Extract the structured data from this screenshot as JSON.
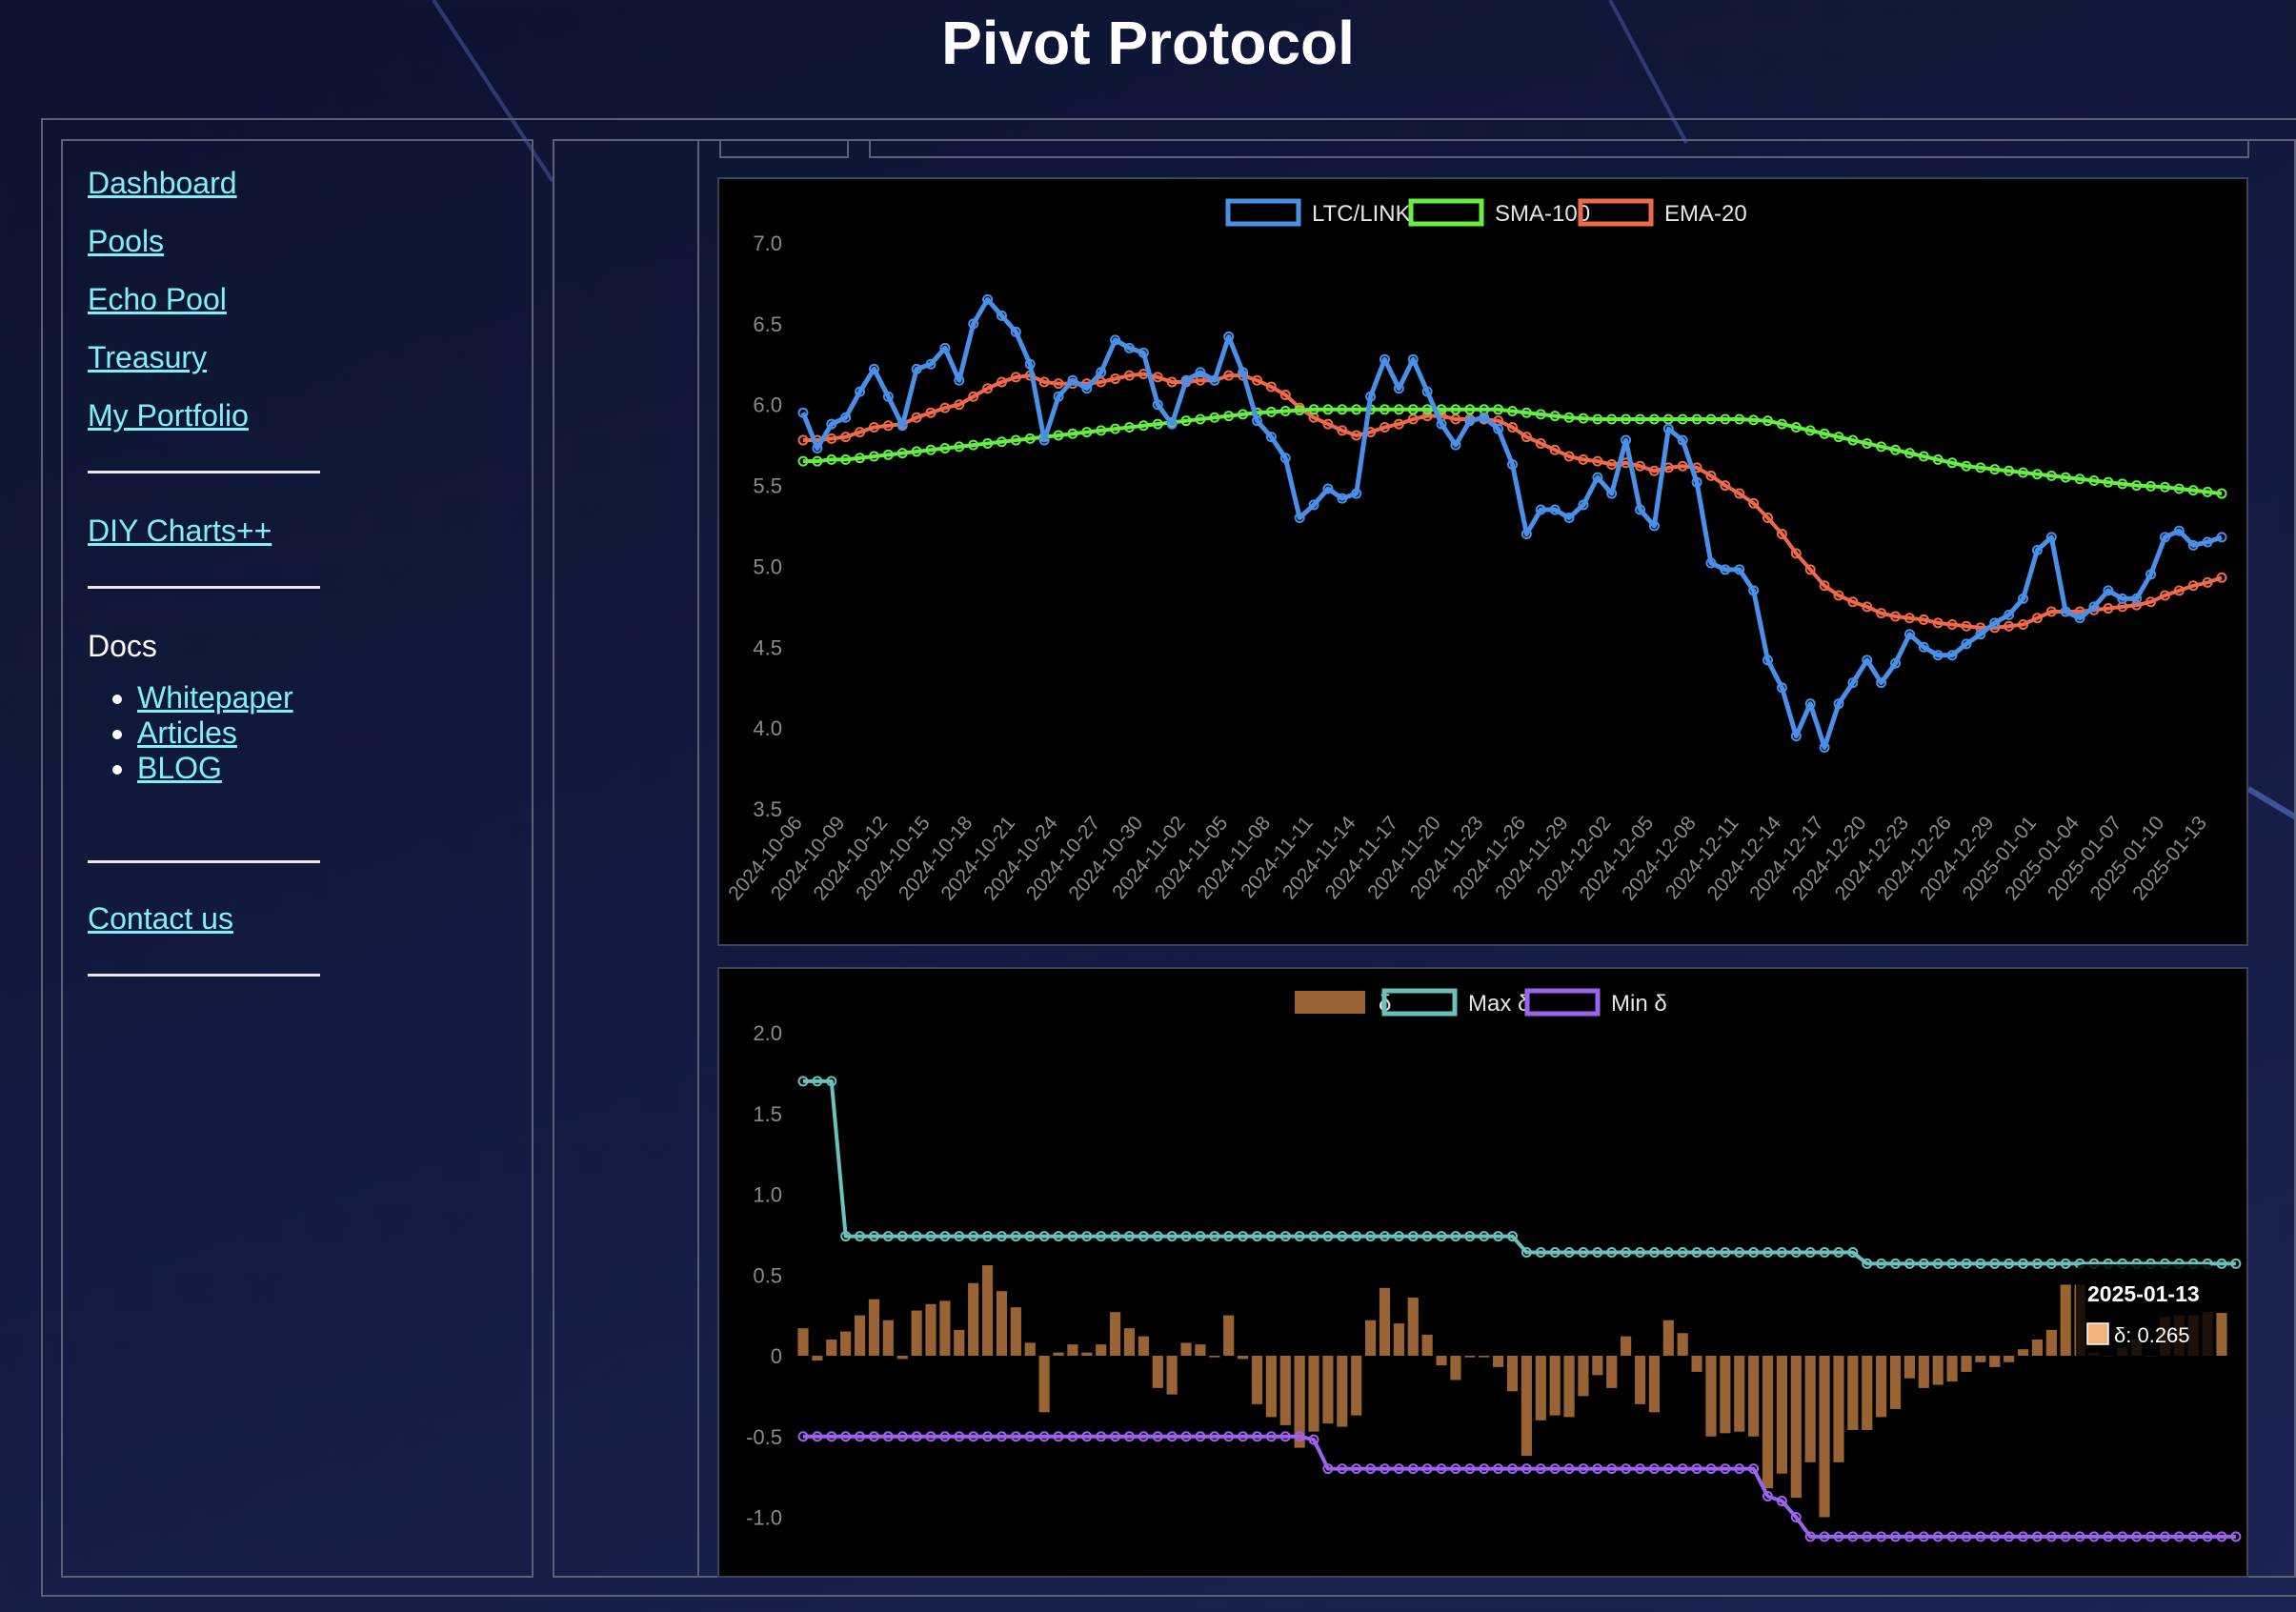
{
  "header": {
    "title": "Pivot Protocol"
  },
  "sidebar": {
    "links": [
      {
        "label": "Dashboard"
      },
      {
        "label": "Pools"
      },
      {
        "label": "Echo Pool"
      },
      {
        "label": "Treasury"
      },
      {
        "label": "My Portfolio"
      },
      {
        "label": "DIY Charts++"
      },
      {
        "label": "Contact us"
      }
    ],
    "docs_label": "Docs",
    "docs_items": [
      {
        "label": "Whitepaper"
      },
      {
        "label": "Articles"
      },
      {
        "label": "BLOG"
      }
    ]
  },
  "colors": {
    "link": "#7ff0f7",
    "price": "#4a8fe8",
    "sma": "#66ee44",
    "ema": "#ef6a4a",
    "delta_bar": "#9a6334",
    "max_delta": "#6cc1bb",
    "min_delta": "#9b63ee"
  },
  "chart_data": [
    {
      "type": "line",
      "series": [
        {
          "name": "LTC/LINK",
          "values": [
            5.95,
            5.73,
            5.88,
            5.92,
            6.08,
            6.22,
            6.05,
            5.87,
            6.22,
            6.25,
            6.35,
            6.15,
            6.5,
            6.65,
            6.55,
            6.45,
            6.25,
            5.78,
            6.05,
            6.15,
            6.1,
            6.2,
            6.4,
            6.35,
            6.32,
            6.0,
            5.88,
            6.15,
            6.2,
            6.15,
            6.42,
            6.2,
            5.9,
            5.8,
            5.67,
            5.3,
            5.38,
            5.48,
            5.42,
            5.45,
            6.05,
            6.28,
            6.1,
            6.28,
            6.08,
            5.88,
            5.75,
            5.9,
            5.92,
            5.85,
            5.63,
            5.2,
            5.35,
            5.35,
            5.3,
            5.38,
            5.55,
            5.45,
            5.78,
            5.35,
            5.25,
            5.85,
            5.78,
            5.52,
            5.02,
            4.98,
            4.98,
            4.85,
            4.42,
            4.25,
            3.95,
            4.15,
            3.88,
            4.15,
            4.28,
            4.42,
            4.28,
            4.4,
            4.58,
            4.5,
            4.45,
            4.45,
            4.52,
            4.58,
            4.65,
            4.7,
            4.8,
            5.1,
            5.18,
            4.72,
            4.68,
            4.75,
            4.85,
            4.8,
            4.8,
            4.95,
            5.18,
            5.22,
            5.13,
            5.15,
            5.18
          ]
        },
        {
          "name": "SMA-100",
          "values": [
            5.65,
            5.65,
            5.66,
            5.66,
            5.67,
            5.68,
            5.69,
            5.7,
            5.71,
            5.72,
            5.73,
            5.74,
            5.75,
            5.76,
            5.77,
            5.78,
            5.79,
            5.8,
            5.81,
            5.82,
            5.83,
            5.84,
            5.85,
            5.86,
            5.87,
            5.88,
            5.89,
            5.9,
            5.91,
            5.92,
            5.93,
            5.94,
            5.95,
            5.955,
            5.96,
            5.965,
            5.97,
            5.97,
            5.97,
            5.97,
            5.97,
            5.97,
            5.97,
            5.97,
            5.97,
            5.97,
            5.97,
            5.97,
            5.97,
            5.97,
            5.96,
            5.95,
            5.94,
            5.93,
            5.92,
            5.915,
            5.91,
            5.91,
            5.91,
            5.91,
            5.91,
            5.91,
            5.91,
            5.91,
            5.91,
            5.91,
            5.91,
            5.905,
            5.9,
            5.88,
            5.86,
            5.84,
            5.82,
            5.8,
            5.78,
            5.76,
            5.74,
            5.72,
            5.7,
            5.68,
            5.66,
            5.64,
            5.62,
            5.61,
            5.6,
            5.59,
            5.58,
            5.57,
            5.56,
            5.55,
            5.54,
            5.53,
            5.52,
            5.51,
            5.5,
            5.495,
            5.49,
            5.48,
            5.47,
            5.46,
            5.45
          ]
        },
        {
          "name": "EMA-20",
          "values": [
            5.78,
            5.78,
            5.79,
            5.8,
            5.83,
            5.86,
            5.87,
            5.88,
            5.92,
            5.95,
            5.98,
            6.0,
            6.05,
            6.1,
            6.14,
            6.17,
            6.18,
            6.14,
            6.13,
            6.13,
            6.13,
            6.14,
            6.16,
            6.18,
            6.19,
            6.17,
            6.14,
            6.14,
            6.15,
            6.15,
            6.18,
            6.18,
            6.15,
            6.11,
            6.06,
            5.98,
            5.92,
            5.88,
            5.84,
            5.81,
            5.83,
            5.86,
            5.88,
            5.91,
            5.93,
            5.93,
            5.91,
            5.91,
            5.91,
            5.9,
            5.86,
            5.8,
            5.76,
            5.72,
            5.68,
            5.66,
            5.65,
            5.63,
            5.64,
            5.62,
            5.59,
            5.61,
            5.62,
            5.61,
            5.56,
            5.5,
            5.45,
            5.39,
            5.3,
            5.2,
            5.08,
            4.98,
            4.88,
            4.82,
            4.78,
            4.75,
            4.71,
            4.69,
            4.68,
            4.67,
            4.65,
            4.64,
            4.63,
            4.62,
            4.62,
            4.63,
            4.64,
            4.68,
            4.72,
            4.72,
            4.72,
            4.73,
            4.74,
            4.75,
            4.76,
            4.78,
            4.82,
            4.85,
            4.88,
            4.9,
            4.93
          ]
        }
      ],
      "x_tick_labels": [
        "2024-10-06",
        "2024-10-09",
        "2024-10-12",
        "2024-10-15",
        "2024-10-18",
        "2024-10-21",
        "2024-10-24",
        "2024-10-27",
        "2024-10-30",
        "2024-11-02",
        "2024-11-05",
        "2024-11-08",
        "2024-11-11",
        "2024-11-14",
        "2024-11-17",
        "2024-11-20",
        "2024-11-23",
        "2024-11-26",
        "2024-11-29",
        "2024-12-02",
        "2024-12-05",
        "2024-12-08",
        "2024-12-11",
        "2024-12-14",
        "2024-12-17",
        "2024-12-20",
        "2024-12-23",
        "2024-12-26",
        "2024-12-29",
        "2025-01-01",
        "2025-01-04",
        "2025-01-07",
        "2025-01-10",
        "2025-01-13"
      ],
      "y_tick_labels": [
        "7.0",
        "6.5",
        "6.0",
        "5.5",
        "5.0",
        "4.5",
        "4.0",
        "3.5"
      ],
      "ylim": [
        3.5,
        7.0
      ],
      "legend": "top-center",
      "grid": false
    },
    {
      "type": "bar",
      "series": [
        {
          "name": "δ",
          "values": [
            0.17,
            -0.03,
            0.1,
            0.15,
            0.25,
            0.35,
            0.22,
            -0.02,
            0.28,
            0.32,
            0.34,
            0.16,
            0.45,
            0.56,
            0.4,
            0.3,
            0.08,
            -0.35,
            0.02,
            0.07,
            0.02,
            0.07,
            0.27,
            0.17,
            0.12,
            -0.2,
            -0.24,
            0.08,
            0.07,
            -0.01,
            0.25,
            -0.02,
            -0.3,
            -0.38,
            -0.43,
            -0.57,
            -0.47,
            -0.42,
            -0.44,
            -0.37,
            0.22,
            0.42,
            0.2,
            0.36,
            0.13,
            -0.06,
            -0.15,
            -0.01,
            -0.01,
            -0.07,
            -0.22,
            -0.62,
            -0.4,
            -0.37,
            -0.38,
            -0.25,
            -0.12,
            -0.2,
            0.12,
            -0.3,
            -0.35,
            0.22,
            0.14,
            -0.1,
            -0.5,
            -0.48,
            -0.47,
            -0.5,
            -0.82,
            -0.73,
            -0.88,
            -0.66,
            -1.0,
            -0.66,
            -0.46,
            -0.46,
            -0.38,
            -0.33,
            -0.14,
            -0.2,
            -0.18,
            -0.16,
            -0.1,
            -0.04,
            -0.07,
            -0.04,
            0.04,
            0.1,
            0.16,
            0.44,
            0.44,
            0.02,
            0.0,
            0.05,
            0.1,
            0.0,
            0.24,
            0.25,
            0.25,
            0.27,
            0.265
          ]
        },
        {
          "name": "Max δ",
          "values": [
            1.7,
            1.7,
            1.7,
            0.74,
            0.74,
            0.74,
            0.74,
            0.74,
            0.74,
            0.74,
            0.74,
            0.74,
            0.74,
            0.74,
            0.74,
            0.74,
            0.74,
            0.74,
            0.74,
            0.74,
            0.74,
            0.74,
            0.74,
            0.74,
            0.74,
            0.74,
            0.74,
            0.74,
            0.74,
            0.74,
            0.74,
            0.74,
            0.74,
            0.74,
            0.74,
            0.74,
            0.74,
            0.74,
            0.74,
            0.74,
            0.74,
            0.74,
            0.74,
            0.74,
            0.74,
            0.74,
            0.74,
            0.74,
            0.74,
            0.74,
            0.74,
            0.64,
            0.64,
            0.64,
            0.64,
            0.64,
            0.64,
            0.64,
            0.64,
            0.64,
            0.64,
            0.64,
            0.64,
            0.64,
            0.64,
            0.64,
            0.64,
            0.64,
            0.64,
            0.64,
            0.64,
            0.64,
            0.64,
            0.64,
            0.64,
            0.57,
            0.57,
            0.57,
            0.57,
            0.57,
            0.57,
            0.57,
            0.57,
            0.57,
            0.57,
            0.57,
            0.57,
            0.57,
            0.57,
            0.57,
            0.57,
            0.57,
            0.57,
            0.57,
            0.57,
            0.57,
            0.57,
            0.57,
            0.57,
            0.57,
            0.57,
            0.57
          ]
        },
        {
          "name": "Min δ",
          "values": [
            -0.5,
            -0.5,
            -0.5,
            -0.5,
            -0.5,
            -0.5,
            -0.5,
            -0.5,
            -0.5,
            -0.5,
            -0.5,
            -0.5,
            -0.5,
            -0.5,
            -0.5,
            -0.5,
            -0.5,
            -0.5,
            -0.5,
            -0.5,
            -0.5,
            -0.5,
            -0.5,
            -0.5,
            -0.5,
            -0.5,
            -0.5,
            -0.5,
            -0.5,
            -0.5,
            -0.5,
            -0.5,
            -0.5,
            -0.5,
            -0.5,
            -0.5,
            -0.52,
            -0.7,
            -0.7,
            -0.7,
            -0.7,
            -0.7,
            -0.7,
            -0.7,
            -0.7,
            -0.7,
            -0.7,
            -0.7,
            -0.7,
            -0.7,
            -0.7,
            -0.7,
            -0.7,
            -0.7,
            -0.7,
            -0.7,
            -0.7,
            -0.7,
            -0.7,
            -0.7,
            -0.7,
            -0.7,
            -0.7,
            -0.7,
            -0.7,
            -0.7,
            -0.7,
            -0.7,
            -0.87,
            -0.9,
            -1.0,
            -1.12,
            -1.12,
            -1.12,
            -1.12,
            -1.12,
            -1.12,
            -1.12,
            -1.12,
            -1.12,
            -1.12,
            -1.12,
            -1.12,
            -1.12,
            -1.12,
            -1.12,
            -1.12,
            -1.12,
            -1.12,
            -1.12,
            -1.12,
            -1.12,
            -1.12,
            -1.12,
            -1.12,
            -1.12,
            -1.12,
            -1.12,
            -1.12,
            -1.12,
            -1.12,
            -1.12
          ]
        }
      ],
      "y_tick_labels": [
        "2.0",
        "1.5",
        "1.0",
        "0.5",
        "0",
        "-0.5",
        "-1.0"
      ],
      "ylim": [
        -1.2,
        2.0
      ],
      "legend": "top-center",
      "grid": false,
      "tooltip": {
        "title": "2025-01-13",
        "label": "δ: 0.265"
      }
    }
  ]
}
